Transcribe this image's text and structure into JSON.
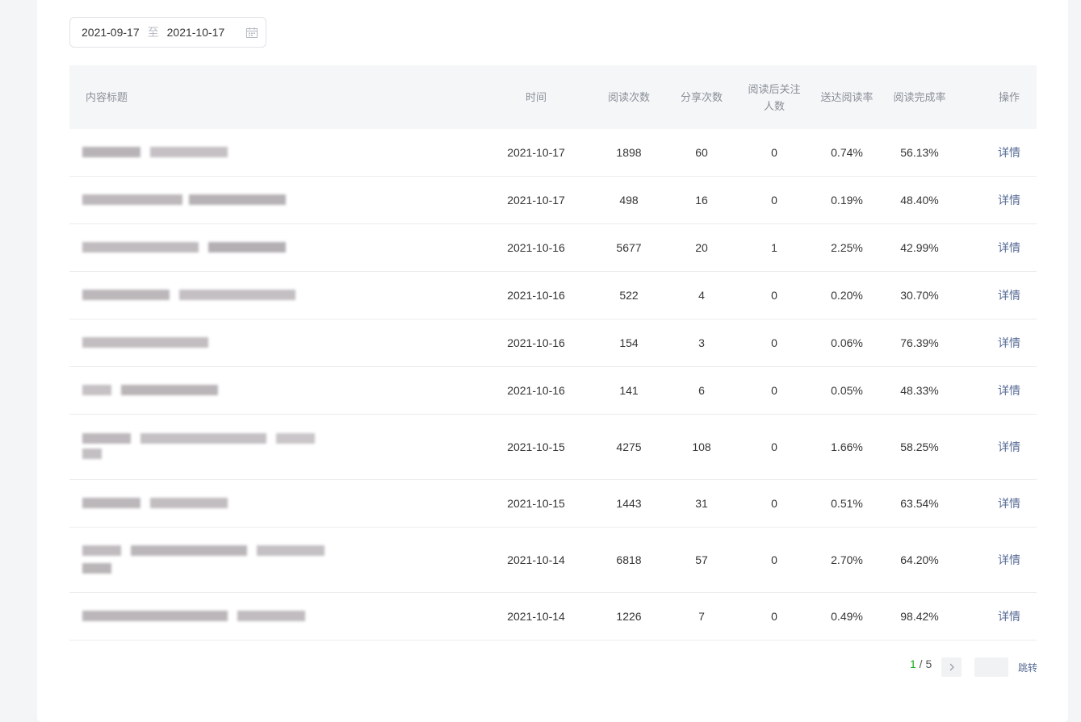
{
  "date_range": {
    "start": "2021-09-17",
    "separator": "至",
    "end": "2021-10-17",
    "icon": "calendar-icon"
  },
  "table": {
    "headers": {
      "title": "内容标题",
      "time": "时间",
      "reads": "阅读次数",
      "shares": "分享次数",
      "follows_line1": "阅读后关注",
      "follows_line2": "人数",
      "delivery_rate": "送达阅读率",
      "completion_rate": "阅读完成率",
      "action": "操作"
    },
    "rows": [
      {
        "time": "2021-10-17",
        "reads": "1898",
        "shares": "60",
        "follows": "0",
        "delivery_rate": "0.74%",
        "completion_rate": "56.13%",
        "action": "详情"
      },
      {
        "time": "2021-10-17",
        "reads": "498",
        "shares": "16",
        "follows": "0",
        "delivery_rate": "0.19%",
        "completion_rate": "48.40%",
        "action": "详情"
      },
      {
        "time": "2021-10-16",
        "reads": "5677",
        "shares": "20",
        "follows": "1",
        "delivery_rate": "2.25%",
        "completion_rate": "42.99%",
        "action": "详情"
      },
      {
        "time": "2021-10-16",
        "reads": "522",
        "shares": "4",
        "follows": "0",
        "delivery_rate": "0.20%",
        "completion_rate": "30.70%",
        "action": "详情"
      },
      {
        "time": "2021-10-16",
        "reads": "154",
        "shares": "3",
        "follows": "0",
        "delivery_rate": "0.06%",
        "completion_rate": "76.39%",
        "action": "详情"
      },
      {
        "time": "2021-10-16",
        "reads": "141",
        "shares": "6",
        "follows": "0",
        "delivery_rate": "0.05%",
        "completion_rate": "48.33%",
        "action": "详情"
      },
      {
        "time": "2021-10-15",
        "reads": "4275",
        "shares": "108",
        "follows": "0",
        "delivery_rate": "1.66%",
        "completion_rate": "58.25%",
        "action": "详情"
      },
      {
        "time": "2021-10-15",
        "reads": "1443",
        "shares": "31",
        "follows": "0",
        "delivery_rate": "0.51%",
        "completion_rate": "63.54%",
        "action": "详情"
      },
      {
        "time": "2021-10-14",
        "reads": "6818",
        "shares": "57",
        "follows": "0",
        "delivery_rate": "2.70%",
        "completion_rate": "64.20%",
        "action": "详情"
      },
      {
        "time": "2021-10-14",
        "reads": "1226",
        "shares": "7",
        "follows": "0",
        "delivery_rate": "0.49%",
        "completion_rate": "98.42%",
        "action": "详情"
      }
    ]
  },
  "pagination": {
    "current": "1",
    "slash": " / ",
    "total": "5",
    "next_icon": "chevron-right-icon",
    "jump_label": "跳转"
  },
  "colors": {
    "accent_green": "#1aad19",
    "link": "#576b95"
  }
}
